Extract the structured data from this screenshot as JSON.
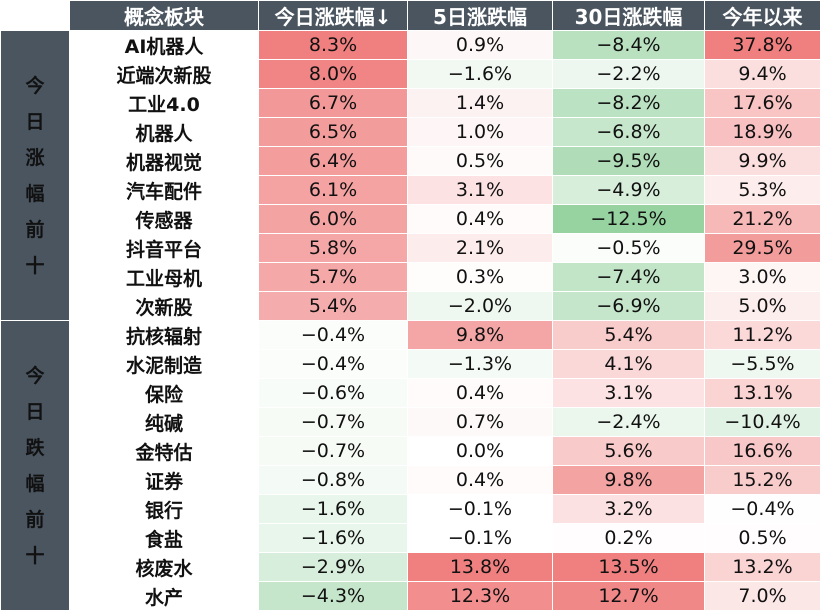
{
  "chart_data": {
    "type": "heatmap",
    "columns": [
      "概念板块",
      "今日涨跌幅↓",
      "5日涨跌幅",
      "30日涨跌幅",
      "今年以来"
    ],
    "groups": [
      {
        "label": "今日涨幅前十",
        "rows": [
          {
            "name": "AI机器人",
            "values": [
              8.3,
              0.9,
              -8.4,
              37.8
            ],
            "display": [
              "8.3%",
              "0.9%",
              "−8.4%",
              "37.8%"
            ]
          },
          {
            "name": "近端次新股",
            "values": [
              8.0,
              -1.6,
              -2.2,
              9.4
            ],
            "display": [
              "8.0%",
              "−1.6%",
              "−2.2%",
              "9.4%"
            ]
          },
          {
            "name": "工业4.0",
            "values": [
              6.7,
              1.4,
              -8.2,
              17.6
            ],
            "display": [
              "6.7%",
              "1.4%",
              "−8.2%",
              "17.6%"
            ]
          },
          {
            "name": "机器人",
            "values": [
              6.5,
              1.0,
              -6.8,
              18.9
            ],
            "display": [
              "6.5%",
              "1.0%",
              "−6.8%",
              "18.9%"
            ]
          },
          {
            "name": "机器视觉",
            "values": [
              6.4,
              0.5,
              -9.5,
              9.9
            ],
            "display": [
              "6.4%",
              "0.5%",
              "−9.5%",
              "9.9%"
            ]
          },
          {
            "name": "汽车配件",
            "values": [
              6.1,
              3.1,
              -4.9,
              5.3
            ],
            "display": [
              "6.1%",
              "3.1%",
              "−4.9%",
              "5.3%"
            ]
          },
          {
            "name": "传感器",
            "values": [
              6.0,
              0.4,
              -12.5,
              21.2
            ],
            "display": [
              "6.0%",
              "0.4%",
              "−12.5%",
              "21.2%"
            ]
          },
          {
            "name": "抖音平台",
            "values": [
              5.8,
              2.1,
              -0.5,
              29.5
            ],
            "display": [
              "5.8%",
              "2.1%",
              "−0.5%",
              "29.5%"
            ]
          },
          {
            "name": "工业母机",
            "values": [
              5.7,
              0.3,
              -7.4,
              3.0
            ],
            "display": [
              "5.7%",
              "0.3%",
              "−7.4%",
              "3.0%"
            ]
          },
          {
            "name": "次新股",
            "values": [
              5.4,
              -2.0,
              -6.9,
              5.0
            ],
            "display": [
              "5.4%",
              "−2.0%",
              "−6.9%",
              "5.0%"
            ]
          }
        ]
      },
      {
        "label": "今日跌幅前十",
        "rows": [
          {
            "name": "抗核辐射",
            "values": [
              -0.4,
              9.8,
              5.4,
              11.2
            ],
            "display": [
              "−0.4%",
              "9.8%",
              "5.4%",
              "11.2%"
            ]
          },
          {
            "name": "水泥制造",
            "values": [
              -0.4,
              -1.3,
              4.1,
              -5.5
            ],
            "display": [
              "−0.4%",
              "−1.3%",
              "4.1%",
              "−5.5%"
            ]
          },
          {
            "name": "保险",
            "values": [
              -0.6,
              0.4,
              3.1,
              13.1
            ],
            "display": [
              "−0.6%",
              "0.4%",
              "3.1%",
              "13.1%"
            ]
          },
          {
            "name": "纯碱",
            "values": [
              -0.7,
              0.7,
              -2.4,
              -10.4
            ],
            "display": [
              "−0.7%",
              "0.7%",
              "−2.4%",
              "−10.4%"
            ]
          },
          {
            "name": "金特估",
            "values": [
              -0.7,
              0.0,
              5.6,
              16.6
            ],
            "display": [
              "−0.7%",
              "0.0%",
              "5.6%",
              "16.6%"
            ]
          },
          {
            "name": "证券",
            "values": [
              -0.8,
              0.4,
              9.8,
              15.2
            ],
            "display": [
              "−0.8%",
              "0.4%",
              "9.8%",
              "15.2%"
            ]
          },
          {
            "name": "银行",
            "values": [
              -1.6,
              -0.1,
              3.2,
              -0.4
            ],
            "display": [
              "−1.6%",
              "−0.1%",
              "3.2%",
              "−0.4%"
            ]
          },
          {
            "name": "食盐",
            "values": [
              -1.6,
              -0.1,
              0.2,
              0.5
            ],
            "display": [
              "−1.6%",
              "−0.1%",
              "0.2%",
              "0.5%"
            ]
          },
          {
            "name": "核废水",
            "values": [
              -2.9,
              13.8,
              13.5,
              13.2
            ],
            "display": [
              "−2.9%",
              "13.8%",
              "13.5%",
              "13.2%"
            ]
          },
          {
            "name": "水产",
            "values": [
              -4.3,
              12.3,
              12.7,
              7.0
            ],
            "display": [
              "−4.3%",
              "12.3%",
              "12.7%",
              "7.0%"
            ]
          }
        ]
      }
    ],
    "colors": {
      "positive": "#f08080",
      "negative": "#8fcf9a",
      "header_bg": "#4a5560",
      "up_name": "#c00000",
      "down_name": "#3a6a1e"
    }
  }
}
